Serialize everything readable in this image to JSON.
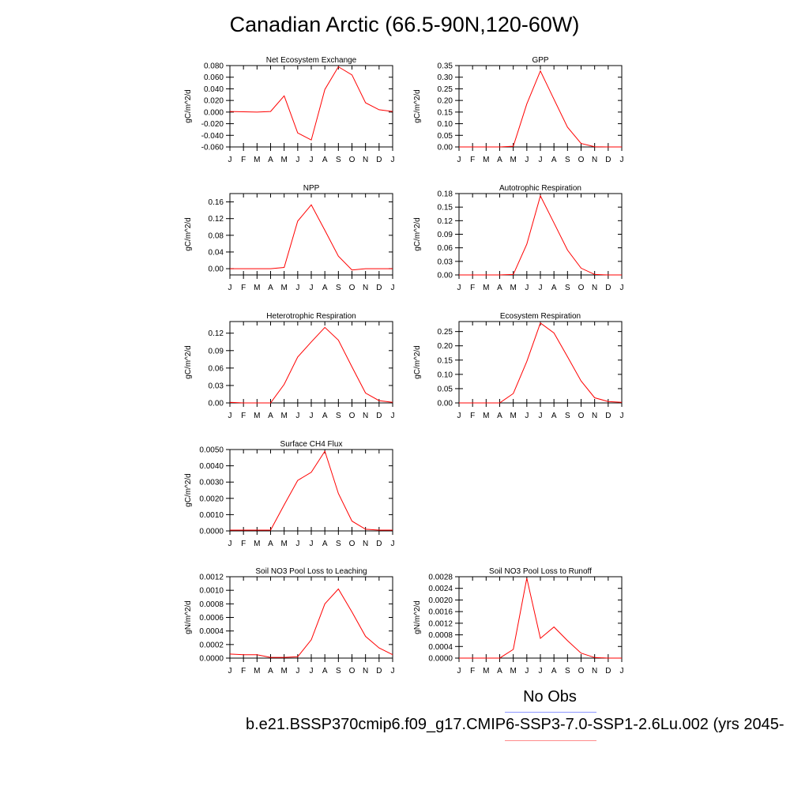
{
  "page": {
    "title": "Canadian Arctic (66.5-90N,120-60W)",
    "legend": {
      "obs_label": "No Obs",
      "obs_color": "#8c96ff",
      "model_label": "b.e21.BSSP370cmip6.f09_g17.CMIP6-SSP3-7.0-SSP1-2.6Lu.002 (yrs 2045-",
      "model_color": "#ff0000"
    }
  },
  "chart_data": [
    {
      "type": "line",
      "title": "Net Ecosystem Exchange",
      "ylabel": "gC/m^2/d",
      "categories": [
        "J",
        "F",
        "M",
        "A",
        "M",
        "J",
        "J",
        "A",
        "S",
        "O",
        "N",
        "D",
        "J"
      ],
      "ylim": [
        -0.06,
        0.08
      ],
      "yticks": [
        "-0.060",
        "-0.040",
        "-0.020",
        "0.000",
        "0.020",
        "0.040",
        "0.060",
        "0.080"
      ],
      "series": [
        {
          "color": "#ff0000",
          "values": [
            0.001,
            0.0005,
            0.0,
            0.001,
            0.028,
            -0.036,
            -0.048,
            0.039,
            0.078,
            0.064,
            0.016,
            0.004,
            0.001
          ]
        }
      ]
    },
    {
      "type": "line",
      "title": "GPP",
      "ylabel": "gC/m^2/d",
      "categories": [
        "J",
        "F",
        "M",
        "A",
        "M",
        "J",
        "J",
        "A",
        "S",
        "O",
        "N",
        "D",
        "J"
      ],
      "ylim": [
        0,
        0.35
      ],
      "yticks": [
        "0.00",
        "0.05",
        "0.10",
        "0.15",
        "0.20",
        "0.25",
        "0.30",
        "0.35"
      ],
      "series": [
        {
          "color": "#ff0000",
          "values": [
            0,
            0,
            0,
            0,
            0.003,
            0.185,
            0.327,
            0.205,
            0.085,
            0.015,
            0.001,
            0,
            0
          ]
        }
      ]
    },
    {
      "type": "line",
      "title": "NPP",
      "ylabel": "gC/m^2/d",
      "categories": [
        "J",
        "F",
        "M",
        "A",
        "M",
        "J",
        "J",
        "A",
        "S",
        "O",
        "N",
        "D",
        "J"
      ],
      "ylim": [
        -0.015,
        0.18
      ],
      "yticks": [
        "0.00",
        "0.04",
        "0.08",
        "0.12",
        "0.16"
      ],
      "series": [
        {
          "color": "#ff0000",
          "values": [
            0,
            0,
            0,
            0,
            0.003,
            0.114,
            0.153,
            0.092,
            0.03,
            -0.003,
            0,
            0,
            0
          ]
        }
      ]
    },
    {
      "type": "line",
      "title": "Autotrophic Respiration",
      "ylabel": "gC/m^2/d",
      "categories": [
        "J",
        "F",
        "M",
        "A",
        "M",
        "J",
        "J",
        "A",
        "S",
        "O",
        "N",
        "D",
        "J"
      ],
      "ylim": [
        0,
        0.18
      ],
      "yticks": [
        "0.00",
        "0.03",
        "0.06",
        "0.09",
        "0.12",
        "0.15",
        "0.18"
      ],
      "series": [
        {
          "color": "#ff0000",
          "values": [
            0,
            0,
            0,
            0,
            0.001,
            0.068,
            0.175,
            0.115,
            0.055,
            0.015,
            0.001,
            0,
            0
          ]
        }
      ]
    },
    {
      "type": "line",
      "title": "Heterotrophic Respiration",
      "ylabel": "gC/m^2/d",
      "categories": [
        "J",
        "F",
        "M",
        "A",
        "M",
        "J",
        "J",
        "A",
        "S",
        "O",
        "N",
        "D",
        "J"
      ],
      "ylim": [
        0,
        0.14
      ],
      "yticks": [
        "0.00",
        "0.03",
        "0.06",
        "0.09",
        "0.12"
      ],
      "series": [
        {
          "color": "#ff0000",
          "values": [
            0.001,
            0,
            0,
            0,
            0.032,
            0.079,
            0.105,
            0.13,
            0.108,
            0.062,
            0.017,
            0.004,
            0.001
          ]
        }
      ]
    },
    {
      "type": "line",
      "title": "Ecosystem Respiration",
      "ylabel": "gC/m^2/d",
      "categories": [
        "J",
        "F",
        "M",
        "A",
        "M",
        "J",
        "J",
        "A",
        "S",
        "O",
        "N",
        "D",
        "J"
      ],
      "ylim": [
        0,
        0.285
      ],
      "yticks": [
        "0.00",
        "0.05",
        "0.10",
        "0.15",
        "0.20",
        "0.25"
      ],
      "series": [
        {
          "color": "#ff0000",
          "values": [
            0,
            0,
            0,
            0,
            0.033,
            0.145,
            0.28,
            0.245,
            0.162,
            0.077,
            0.018,
            0.005,
            0.002
          ]
        }
      ]
    },
    {
      "type": "line",
      "title": "Surface CH4 Flux",
      "ylabel": "gC/m^2/d",
      "categories": [
        "J",
        "F",
        "M",
        "A",
        "M",
        "J",
        "J",
        "A",
        "S",
        "O",
        "N",
        "D",
        "J"
      ],
      "ylim": [
        0,
        0.005
      ],
      "yticks": [
        "0.0000",
        "0.0010",
        "0.0020",
        "0.0030",
        "0.0040",
        "0.0050"
      ],
      "series": [
        {
          "color": "#ff0000",
          "values": [
            5e-05,
            5e-05,
            5e-05,
            5e-05,
            0.0016,
            0.0031,
            0.0036,
            0.0049,
            0.0023,
            0.0006,
            0.0001,
            5e-05,
            5e-05
          ]
        }
      ]
    },
    {
      "type": "line",
      "title": "Soil NO3 Pool Loss to Leaching",
      "ylabel": "gN/m^2/d",
      "categories": [
        "J",
        "F",
        "M",
        "A",
        "M",
        "J",
        "J",
        "A",
        "S",
        "O",
        "N",
        "D",
        "J"
      ],
      "ylim": [
        0,
        0.0012
      ],
      "yticks": [
        "0.0000",
        "0.0002",
        "0.0004",
        "0.0006",
        "0.0008",
        "0.0010",
        "0.0012"
      ],
      "series": [
        {
          "color": "#ff0000",
          "values": [
            6e-05,
            5e-05,
            5e-05,
            1e-05,
            1e-05,
            2e-05,
            0.00027,
            0.0008,
            0.00102,
            0.00068,
            0.00032,
            0.00015,
            5e-05
          ]
        }
      ]
    },
    {
      "type": "line",
      "title": "Soil NO3 Pool Loss to Runoff",
      "ylabel": "gN/m^2/d",
      "categories": [
        "J",
        "F",
        "M",
        "A",
        "M",
        "J",
        "J",
        "A",
        "S",
        "O",
        "N",
        "D",
        "J"
      ],
      "ylim": [
        0,
        0.0028
      ],
      "yticks": [
        "0.0000",
        "0.0004",
        "0.0008",
        "0.0012",
        "0.0016",
        "0.0020",
        "0.0024",
        "0.0028"
      ],
      "series": [
        {
          "color": "#ff0000",
          "values": [
            0,
            0,
            0,
            0,
            0.0003,
            0.00275,
            0.00068,
            0.00107,
            0.0006,
            0.00017,
            2e-05,
            0,
            0
          ]
        }
      ]
    }
  ]
}
